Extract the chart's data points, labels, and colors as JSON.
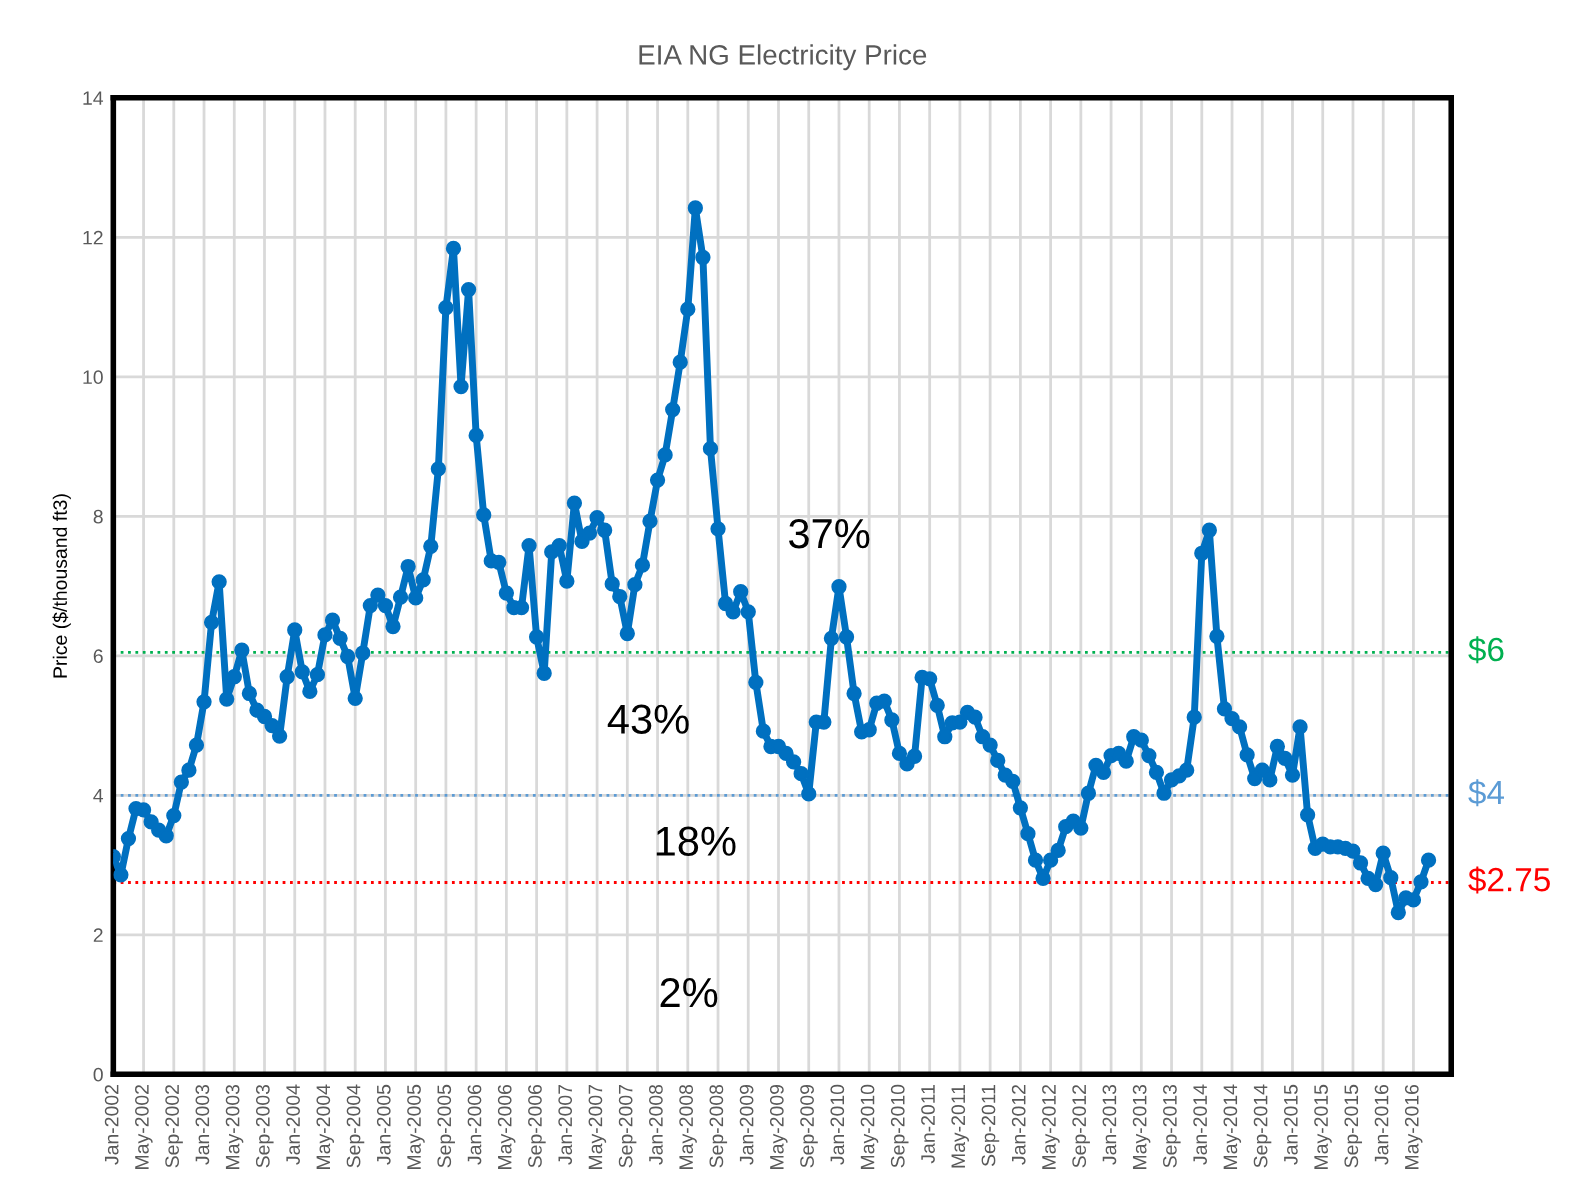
{
  "chart_data": {
    "type": "line",
    "title": "EIA NG Electricity Price",
    "ylabel": "Price ($/thousand ft3)",
    "categories": [
      "Jan-2002",
      null,
      null,
      null,
      "May-2002",
      null,
      null,
      null,
      "Sep-2002",
      null,
      null,
      null,
      "Jan-2003",
      null,
      null,
      null,
      "May-2003",
      null,
      null,
      null,
      "Sep-2003",
      null,
      null,
      null,
      "Jan-2004",
      null,
      null,
      null,
      "May-2004",
      null,
      null,
      null,
      "Sep-2004",
      null,
      null,
      null,
      "Jan-2005",
      null,
      null,
      null,
      "May-2005",
      null,
      null,
      null,
      "Sep-2005",
      null,
      null,
      null,
      "Jan-2006",
      null,
      null,
      null,
      "May-2006",
      null,
      null,
      null,
      "Sep-2006",
      null,
      null,
      null,
      "Jan-2007",
      null,
      null,
      null,
      "May-2007",
      null,
      null,
      null,
      "Sep-2007",
      null,
      null,
      null,
      "Jan-2008",
      null,
      null,
      null,
      "May-2008",
      null,
      null,
      null,
      "Sep-2008",
      null,
      null,
      null,
      "Jan-2009",
      null,
      null,
      null,
      "May-2009",
      null,
      null,
      null,
      "Sep-2009",
      null,
      null,
      null,
      "Jan-2010",
      null,
      null,
      null,
      "May-2010",
      null,
      null,
      null,
      "Sep-2010",
      null,
      null,
      null,
      "Jan-2011",
      null,
      null,
      null,
      "May-2011",
      null,
      null,
      null,
      "Sep-2011",
      null,
      null,
      null,
      "Jan-2012",
      null,
      null,
      null,
      "May-2012",
      null,
      null,
      null,
      "Sep-2012",
      null,
      null,
      null,
      "Jan-2013",
      null,
      null,
      null,
      "May-2013",
      null,
      null,
      null,
      "Sep-2013",
      null,
      null,
      null,
      "Jan-2014",
      null,
      null,
      null,
      "May-2014",
      null,
      null,
      null,
      "Sep-2014",
      null,
      null,
      null,
      "Jan-2015",
      null,
      null,
      null,
      "May-2015",
      null,
      null,
      null,
      "Sep-2015",
      null,
      null,
      null,
      "Jan-2016",
      null,
      null,
      null,
      "May-2016",
      null,
      null
    ],
    "series": [
      {
        "color": "#0070c0",
        "values": [
          3.12,
          2.86,
          3.38,
          3.81,
          3.79,
          3.62,
          3.5,
          3.42,
          3.71,
          4.19,
          4.36,
          4.72,
          5.34,
          6.48,
          7.06,
          5.38,
          5.7,
          6.08,
          5.46,
          5.22,
          5.13,
          5.0,
          4.85,
          5.7,
          6.37,
          5.77,
          5.49,
          5.73,
          6.3,
          6.51,
          6.25,
          5.99,
          5.39,
          6.04,
          6.72,
          6.87,
          6.72,
          6.42,
          6.84,
          7.28,
          6.83,
          7.09,
          7.57,
          8.68,
          10.99,
          11.84,
          9.86,
          11.25,
          9.16,
          8.02,
          7.36,
          7.34,
          6.9,
          6.69,
          6.69,
          7.58,
          6.27,
          5.75,
          7.49,
          7.58,
          7.07,
          8.19,
          7.64,
          7.76,
          7.98,
          7.8,
          7.03,
          6.85,
          6.32,
          7.02,
          7.3,
          7.93,
          8.52,
          8.88,
          9.53,
          10.21,
          10.97,
          12.42,
          11.71,
          8.97,
          7.82,
          6.75,
          6.63,
          6.92,
          6.63,
          5.62,
          4.92,
          4.7,
          4.7,
          4.6,
          4.48,
          4.31,
          4.02,
          5.05,
          5.05,
          6.25,
          6.99,
          6.27,
          5.46,
          4.91,
          4.94,
          5.32,
          5.35,
          5.08,
          4.6,
          4.45,
          4.56,
          5.69,
          5.67,
          5.29,
          4.84,
          5.04,
          5.05,
          5.19,
          5.12,
          4.84,
          4.72,
          4.5,
          4.29,
          4.2,
          3.82,
          3.45,
          3.07,
          2.81,
          3.07,
          3.21,
          3.55,
          3.63,
          3.53,
          4.03,
          4.43,
          4.33,
          4.57,
          4.6,
          4.49,
          4.84,
          4.79,
          4.57,
          4.33,
          4.03,
          4.22,
          4.28,
          4.36,
          5.12,
          7.47,
          7.8,
          6.28,
          5.24,
          5.1,
          4.98,
          4.58,
          4.24,
          4.36,
          4.22,
          4.7,
          4.53,
          4.29,
          4.98,
          3.72,
          3.24,
          3.3,
          3.26,
          3.26,
          3.24,
          3.2,
          3.03,
          2.81,
          2.72,
          3.17,
          2.82,
          2.32,
          2.53,
          2.5,
          2.76,
          3.07
        ]
      }
    ],
    "ylim": [
      0,
      14
    ],
    "yticks": [
      0,
      2,
      4,
      6,
      8,
      10,
      12,
      14
    ],
    "ref_lines": [
      {
        "axis": "y",
        "value": 6.05,
        "label": "$6",
        "color": "#00b050",
        "line_style": "dotted"
      },
      {
        "axis": "y",
        "value": 4.0,
        "label": "$4",
        "color": "#5b9bd5",
        "line_style": "dotted"
      },
      {
        "axis": "y",
        "value": 2.75,
        "label": "$2.75",
        "color": "#ff0000",
        "line_style": "dotted"
      }
    ],
    "annotations": [
      "37%",
      "43%",
      "18%",
      "2%"
    ],
    "grid": true,
    "marker": "circle",
    "line_style": "solid",
    "legend": false
  }
}
